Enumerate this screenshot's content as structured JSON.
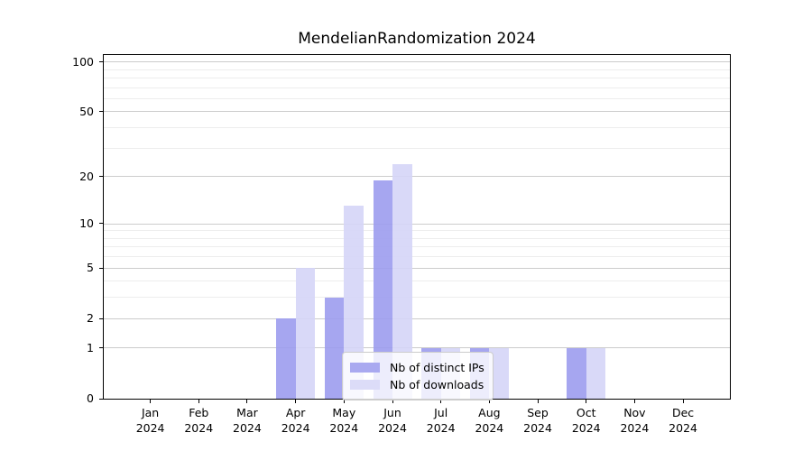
{
  "chart_data": {
    "type": "bar",
    "title": "MendelianRandomization 2024",
    "categories": [
      "Jan",
      "Feb",
      "Mar",
      "Apr",
      "May",
      "Jun",
      "Jul",
      "Aug",
      "Sep",
      "Oct",
      "Nov",
      "Dec"
    ],
    "x_year_label": "2024",
    "series": [
      {
        "name": "Nb of distinct IPs",
        "color": "rgba(156,156,238,0.90)",
        "color_hex": "#a9a9f0",
        "values": [
          0,
          0,
          0,
          2,
          3,
          19,
          1,
          1,
          0,
          1,
          0,
          0
        ]
      },
      {
        "name": "Nb of downloads",
        "color": "rgba(213,213,247,0.90)",
        "color_hex": "#dcdcf8",
        "values": [
          0,
          0,
          0,
          5,
          13,
          24,
          1,
          1,
          0,
          1,
          0,
          0
        ]
      }
    ],
    "y_scale": "log1p",
    "y_tick_labels": [
      "0",
      "1",
      "2",
      "5",
      "10",
      "20",
      "50",
      "100"
    ],
    "y_tick_values": [
      0,
      1,
      2,
      5,
      10,
      20,
      50,
      100
    ],
    "y_minor_gridline_values": [
      3,
      4,
      6,
      7,
      8,
      9,
      30,
      40,
      60,
      70,
      80,
      90
    ],
    "ylim": [
      0,
      112
    ],
    "grid": true,
    "legend_position": "inside-bottom-center",
    "colors": {
      "major_gridline": "#cccccc",
      "minor_gridline": "#ededed",
      "axis": "#000000",
      "background": "#ffffff"
    }
  }
}
